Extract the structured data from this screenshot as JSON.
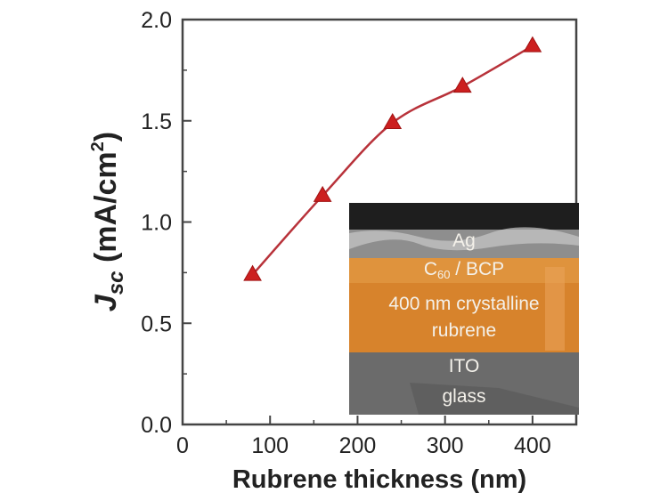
{
  "chart_data": {
    "type": "line",
    "xlabel": "Rubrene thickness (nm)",
    "ylabel": {
      "main": "J",
      "sub": "sc",
      "unit_prefix": " (mA/cm",
      "unit_sup": "2",
      "unit_suffix": ")"
    },
    "xlim": [
      0,
      450
    ],
    "ylim": [
      0,
      2.0
    ],
    "x_ticks": [
      0,
      100,
      200,
      300,
      400
    ],
    "x_tick_labels": [
      "0",
      "100",
      "200",
      "300",
      "400"
    ],
    "y_ticks": [
      0,
      0.5,
      1.0,
      1.5,
      2.0
    ],
    "y_tick_labels": [
      "0.0",
      "0.5",
      "1.0",
      "1.5",
      "2.0"
    ],
    "grid": false,
    "series": [
      {
        "marker": "triangle",
        "color": "#cc1f1f",
        "line_color": "#b8323a",
        "x": [
          80,
          160,
          240,
          320,
          400
        ],
        "y": [
          0.74,
          1.13,
          1.49,
          1.67,
          1.87
        ]
      }
    ],
    "inset": {
      "layers": [
        {
          "label": "Ag",
          "color": "#8b8b8b"
        },
        {
          "label": "C60 / BCP",
          "color": "#d9822b"
        },
        {
          "label": "400 nm crystalline rubrene",
          "color": "#d9822b"
        },
        {
          "label": "ITO",
          "color": "#6a6a6a"
        },
        {
          "label": "glass",
          "color": "#6a6a6a"
        }
      ],
      "texts": {
        "ag": "Ag",
        "c60_prefix": "C",
        "c60_sub": "60",
        "c60_suffix": " / BCP",
        "rubrene_line1": "400 nm crystalline",
        "rubrene_line2": "rubrene",
        "ito": "ITO",
        "glass": "glass"
      }
    }
  }
}
